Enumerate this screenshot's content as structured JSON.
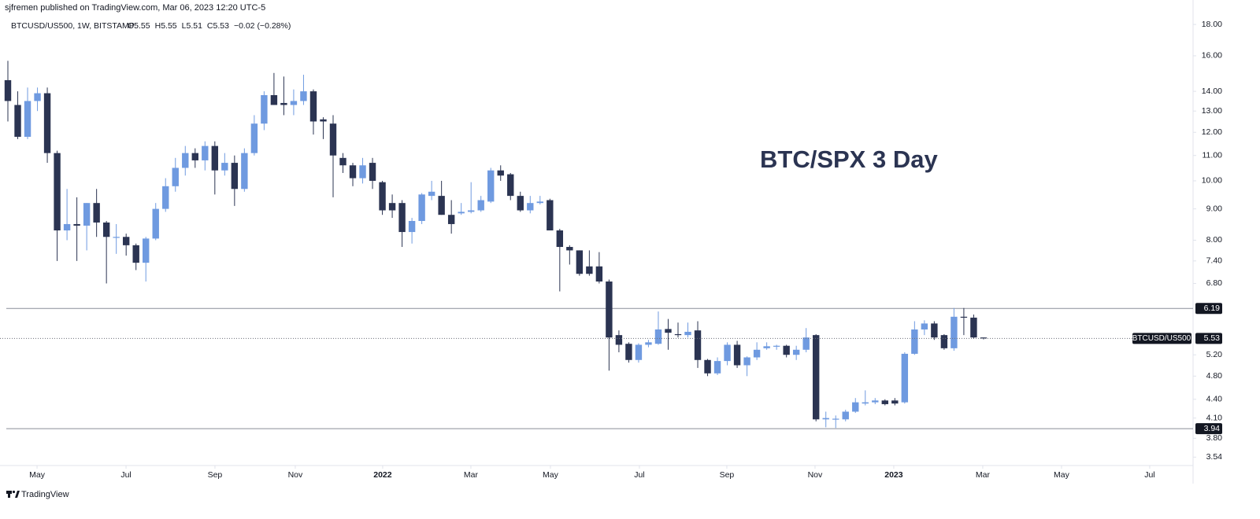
{
  "header": "sjfremen published on TradingView.com, Mar 06, 2023 12:20 UTC-5",
  "footer": "TradingView",
  "chart_data": {
    "type": "candlestick",
    "symbol": "BTCUSD/US500, 1W, BITSTAMP",
    "ohlc": [
      "O5.55",
      "H5.55",
      "L5.51",
      "C5.53"
    ],
    "change": "−0.02 (−0.28%)",
    "annotation": "BTC/SPX 3 Day",
    "up_color": "#6f9ae0",
    "down_color": "#2b3452",
    "log_scale": true,
    "grid": false,
    "open": [
      14.6,
      13.3,
      11.8,
      13.5,
      13.9,
      11.1,
      8.3,
      8.5,
      8.45,
      9.2,
      8.55,
      8.1,
      8.1,
      7.85,
      7.35,
      8.05,
      9.0,
      9.8,
      10.5,
      11.1,
      10.8,
      11.4,
      10.4,
      10.7,
      9.7,
      11.1,
      12.4,
      13.8,
      13.4,
      13.3,
      13.5,
      14.0,
      12.6,
      12.4,
      10.9,
      10.6,
      10.1,
      10.7,
      9.95,
      9.2,
      9.2,
      8.25,
      8.6,
      9.45,
      9.45,
      8.8,
      8.85,
      8.9,
      8.95,
      9.25,
      10.4,
      10.25,
      9.45,
      8.95,
      9.2,
      9.3,
      8.3,
      7.8,
      7.7,
      7.25,
      7.25,
      6.85,
      5.6,
      5.42,
      5.1,
      5.4,
      5.42,
      5.73,
      5.62,
      5.6,
      5.7,
      5.1,
      4.85,
      5.08,
      5.4,
      5.0,
      5.15,
      5.33,
      5.37,
      5.38,
      5.2,
      5.3,
      5.6,
      4.08,
      4.08,
      4.08,
      4.2,
      4.33,
      4.35,
      4.38,
      4.38,
      4.35,
      5.22,
      5.72,
      5.85,
      5.6,
      5.33,
      6.0,
      5.98,
      5.55
    ],
    "high": [
      15.7,
      14.0,
      14.2,
      14.2,
      14.2,
      11.2,
      9.7,
      9.4,
      9.2,
      9.7,
      8.6,
      8.5,
      8.2,
      7.9,
      8.1,
      9.2,
      10.1,
      10.9,
      11.4,
      11.3,
      11.6,
      11.6,
      11.1,
      11.0,
      11.3,
      12.8,
      14.0,
      15.0,
      14.8,
      14.1,
      14.9,
      14.1,
      12.7,
      12.8,
      11.1,
      10.7,
      10.9,
      10.9,
      10.0,
      9.5,
      9.3,
      8.7,
      9.55,
      10.0,
      10.0,
      9.3,
      9.2,
      9.95,
      9.45,
      10.5,
      10.6,
      10.3,
      9.6,
      9.45,
      9.45,
      9.35,
      8.35,
      7.85,
      7.7,
      7.7,
      7.65,
      6.9,
      5.7,
      5.45,
      5.43,
      5.5,
      6.12,
      5.95,
      5.87,
      5.87,
      5.9,
      5.12,
      5.15,
      5.45,
      5.48,
      5.17,
      5.45,
      5.45,
      5.4,
      5.4,
      5.38,
      5.75,
      5.62,
      4.2,
      4.14,
      4.23,
      4.42,
      4.55,
      4.42,
      4.4,
      4.42,
      5.25,
      5.9,
      5.92,
      5.9,
      5.62,
      6.2,
      6.2,
      6.05,
      5.55
    ],
    "low": [
      12.5,
      11.7,
      11.7,
      13.0,
      10.7,
      7.4,
      8.0,
      7.4,
      7.7,
      8.1,
      6.8,
      7.6,
      7.55,
      7.15,
      6.85,
      8.0,
      8.9,
      9.6,
      10.2,
      10.5,
      10.4,
      9.5,
      10.2,
      9.1,
      9.6,
      11.0,
      12.1,
      13.3,
      12.8,
      12.8,
      13.3,
      11.9,
      11.7,
      9.4,
      10.3,
      9.8,
      9.9,
      9.7,
      8.8,
      8.7,
      7.8,
      7.9,
      8.5,
      9.3,
      8.8,
      8.2,
      8.8,
      8.85,
      8.9,
      9.2,
      10.0,
      9.3,
      8.9,
      8.85,
      9.15,
      8.3,
      6.6,
      7.3,
      7.0,
      7.0,
      6.8,
      4.9,
      5.25,
      5.05,
      5.05,
      5.35,
      5.4,
      5.3,
      5.55,
      5.55,
      4.95,
      4.8,
      4.82,
      5.0,
      4.95,
      4.8,
      5.1,
      5.3,
      5.3,
      5.15,
      5.1,
      5.25,
      4.05,
      3.96,
      3.95,
      4.05,
      4.18,
      4.3,
      4.32,
      4.3,
      4.3,
      4.33,
      5.2,
      5.6,
      5.5,
      5.3,
      5.28,
      5.6,
      5.52,
      5.51
    ],
    "close": [
      13.5,
      11.8,
      13.5,
      13.9,
      11.1,
      8.3,
      8.5,
      8.45,
      9.2,
      8.55,
      8.1,
      8.1,
      7.85,
      7.35,
      8.05,
      9.0,
      9.8,
      10.5,
      11.1,
      10.8,
      11.4,
      10.4,
      10.7,
      9.7,
      11.1,
      12.4,
      13.8,
      13.3,
      13.3,
      13.5,
      14.0,
      12.5,
      12.5,
      11.0,
      10.6,
      10.1,
      10.6,
      10.0,
      8.95,
      8.95,
      8.25,
      8.6,
      9.5,
      9.6,
      8.8,
      8.5,
      8.9,
      8.95,
      9.3,
      10.4,
      10.2,
      9.45,
      8.95,
      9.2,
      9.25,
      8.3,
      7.8,
      7.7,
      7.05,
      7.05,
      6.85,
      5.55,
      5.4,
      5.1,
      5.4,
      5.45,
      5.72,
      5.65,
      5.6,
      5.67,
      5.1,
      4.85,
      5.08,
      5.4,
      5.0,
      5.15,
      5.3,
      5.37,
      5.38,
      5.2,
      5.3,
      5.55,
      4.08,
      4.1,
      4.09,
      4.2,
      4.35,
      4.35,
      4.38,
      4.32,
      4.33,
      5.22,
      5.72,
      5.85,
      5.55,
      5.33,
      6.0,
      5.98,
      5.55,
      5.53
    ],
    "xlim": [
      -0.8,
      120.26
    ],
    "xticks": [
      {
        "value": 2.96,
        "label": "May"
      },
      {
        "value": 11.99,
        "label": "Jul"
      },
      {
        "value": 21.01,
        "label": "Sep"
      },
      {
        "value": 29.16,
        "label": "Nov"
      },
      {
        "value": 38.03,
        "label": "2022"
      },
      {
        "value": 46.98,
        "label": "Mar"
      },
      {
        "value": 55.05,
        "label": "May"
      },
      {
        "value": 64.08,
        "label": "Jul"
      },
      {
        "value": 72.95,
        "label": "Sep"
      },
      {
        "value": 81.9,
        "label": "Nov"
      },
      {
        "value": 89.89,
        "label": "2023"
      },
      {
        "value": 98.92,
        "label": "Mar"
      },
      {
        "value": 106.91,
        "label": "May"
      },
      {
        "value": 115.86,
        "label": "Jul"
      }
    ],
    "ylim": [
      3.43,
      18.6
    ],
    "yticks": [
      {
        "value": 18,
        "label": "18.00"
      },
      {
        "value": 16,
        "label": "16.00"
      },
      {
        "value": 14,
        "label": "14.00"
      },
      {
        "value": 13,
        "label": "13.00"
      },
      {
        "value": 12,
        "label": "12.00"
      },
      {
        "value": 11,
        "label": "11.00"
      },
      {
        "value": 10,
        "label": "10.00"
      },
      {
        "value": 9,
        "label": "9.00"
      },
      {
        "value": 8,
        "label": "8.00"
      },
      {
        "value": 7.4,
        "label": "7.40"
      },
      {
        "value": 6.8,
        "label": "6.80"
      },
      {
        "value": 5.2,
        "label": "5.20"
      },
      {
        "value": 4.8,
        "label": "4.80"
      },
      {
        "value": 4.4,
        "label": "4.40"
      },
      {
        "value": 4.1,
        "label": "4.10"
      },
      {
        "value": 3.8,
        "label": "3.80"
      },
      {
        "value": 3.54,
        "label": "3.54"
      }
    ],
    "hlines": [
      6.19,
      3.94
    ],
    "last_price_name": "BTCUSD/US500",
    "last_price": 5.53
  }
}
